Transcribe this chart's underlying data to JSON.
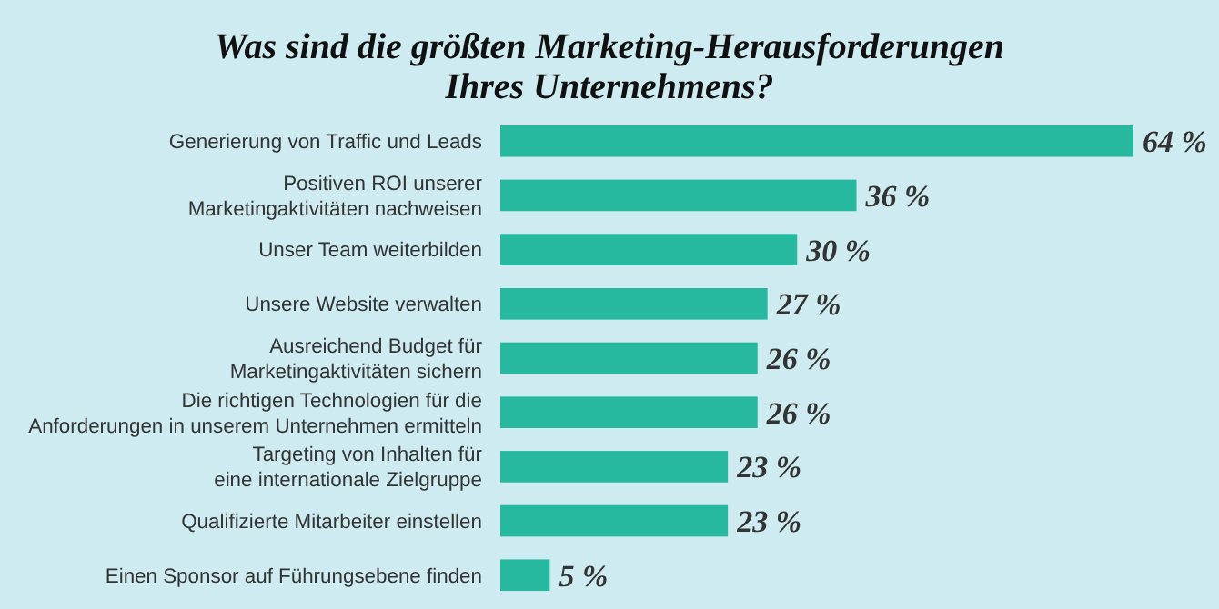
{
  "chart_data": {
    "type": "bar",
    "orientation": "horizontal",
    "title": "Was sind die größten Marketing-Herausforderungen Ihres Unternehmens?",
    "categories": [
      "Generierung von Traffic und Leads",
      "Positiven ROI unserer Marketingaktivitäten nachweisen",
      "Unser Team weiterbilden",
      "Unsere Website verwalten",
      "Ausreichend Budget für Marketingaktivitäten sichern",
      "Die richtigen Technologien für die Anforderungen in unserem Unternehmen ermitteln",
      "Targeting von Inhalten für eine internationale Zielgruppe",
      "Qualifizierte Mitarbeiter einstellen",
      "Einen Sponsor auf Führungsebene finden"
    ],
    "values": [
      64,
      36,
      30,
      27,
      26,
      26,
      23,
      23,
      5
    ],
    "value_labels": [
      "64 %",
      "36 %",
      "30 %",
      "27 %",
      "26 %",
      "26 %",
      "23 %",
      "23 %",
      "5 %"
    ],
    "color": "#26b9a0"
  }
}
